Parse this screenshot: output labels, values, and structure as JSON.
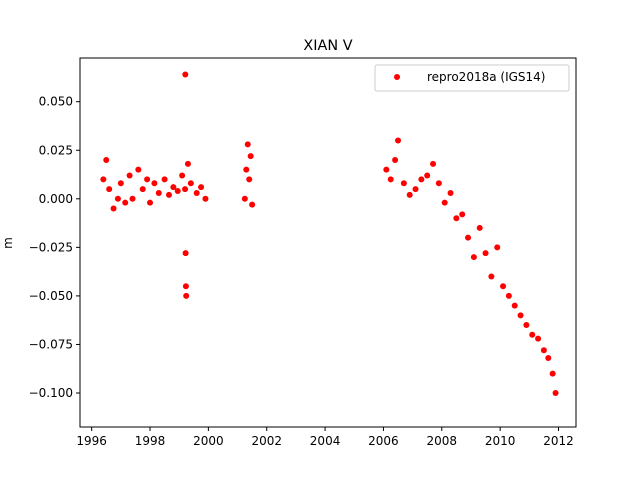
{
  "chart_data": {
    "type": "scatter",
    "title": "XIAN V",
    "xlabel": "",
    "ylabel": "m",
    "xlim": [
      1995.6,
      2012.6
    ],
    "ylim": [
      -0.1175,
      0.0725
    ],
    "x_ticks": [
      1996,
      1998,
      2000,
      2002,
      2004,
      2006,
      2008,
      2010,
      2012
    ],
    "y_ticks": [
      0.05,
      0.025,
      0.0,
      -0.025,
      -0.05,
      -0.075,
      -0.1
    ],
    "y_tick_labels": [
      "0.050",
      "0.025",
      "0.000",
      "−0.025",
      "−0.050",
      "−0.075",
      "−0.100"
    ],
    "grid": false,
    "legend_position": "top-right",
    "series": [
      {
        "name": "repro2018a (IGS14)",
        "color": "#ff0000",
        "marker": "circle",
        "x": [
          1996.4,
          1996.5,
          1996.6,
          1996.75,
          1996.9,
          1997.0,
          1997.15,
          1997.3,
          1997.4,
          1997.6,
          1997.75,
          1997.9,
          1998.0,
          1998.15,
          1998.3,
          1998.5,
          1998.65,
          1998.8,
          1998.95,
          1999.1,
          1999.2,
          1999.3,
          1999.4,
          1999.6,
          1999.75,
          1999.9,
          1999.21,
          1999.22,
          1999.23,
          1999.24,
          2001.25,
          2001.3,
          2001.35,
          2001.4,
          2001.45,
          2001.5,
          2006.1,
          2006.25,
          2006.4,
          2006.5,
          2006.7,
          2006.9,
          2007.1,
          2007.3,
          2007.5,
          2007.7,
          2007.9,
          2008.1,
          2008.3,
          2008.5,
          2008.7,
          2008.9,
          2009.1,
          2009.3,
          2009.5,
          2009.7,
          2009.9,
          2010.1,
          2010.3,
          2010.5,
          2010.7,
          2010.9,
          2011.1,
          2011.3,
          2011.5,
          2011.65,
          2011.8,
          2011.9
        ],
        "y": [
          0.01,
          0.02,
          0.005,
          -0.005,
          0.0,
          0.008,
          -0.002,
          0.012,
          0.0,
          0.015,
          0.005,
          0.01,
          -0.002,
          0.008,
          0.003,
          0.01,
          0.002,
          0.006,
          0.004,
          0.012,
          0.005,
          0.018,
          0.008,
          0.003,
          0.006,
          0.0,
          0.064,
          -0.028,
          -0.045,
          -0.05,
          0.0,
          0.015,
          0.028,
          0.01,
          0.022,
          -0.003,
          0.015,
          0.01,
          0.02,
          0.03,
          0.008,
          0.002,
          0.005,
          0.01,
          0.012,
          0.018,
          0.008,
          -0.002,
          0.003,
          -0.01,
          -0.008,
          -0.02,
          -0.03,
          -0.015,
          -0.028,
          -0.04,
          -0.025,
          -0.045,
          -0.05,
          -0.055,
          -0.06,
          -0.065,
          -0.07,
          -0.072,
          -0.078,
          -0.082,
          -0.09,
          -0.1
        ]
      }
    ]
  }
}
